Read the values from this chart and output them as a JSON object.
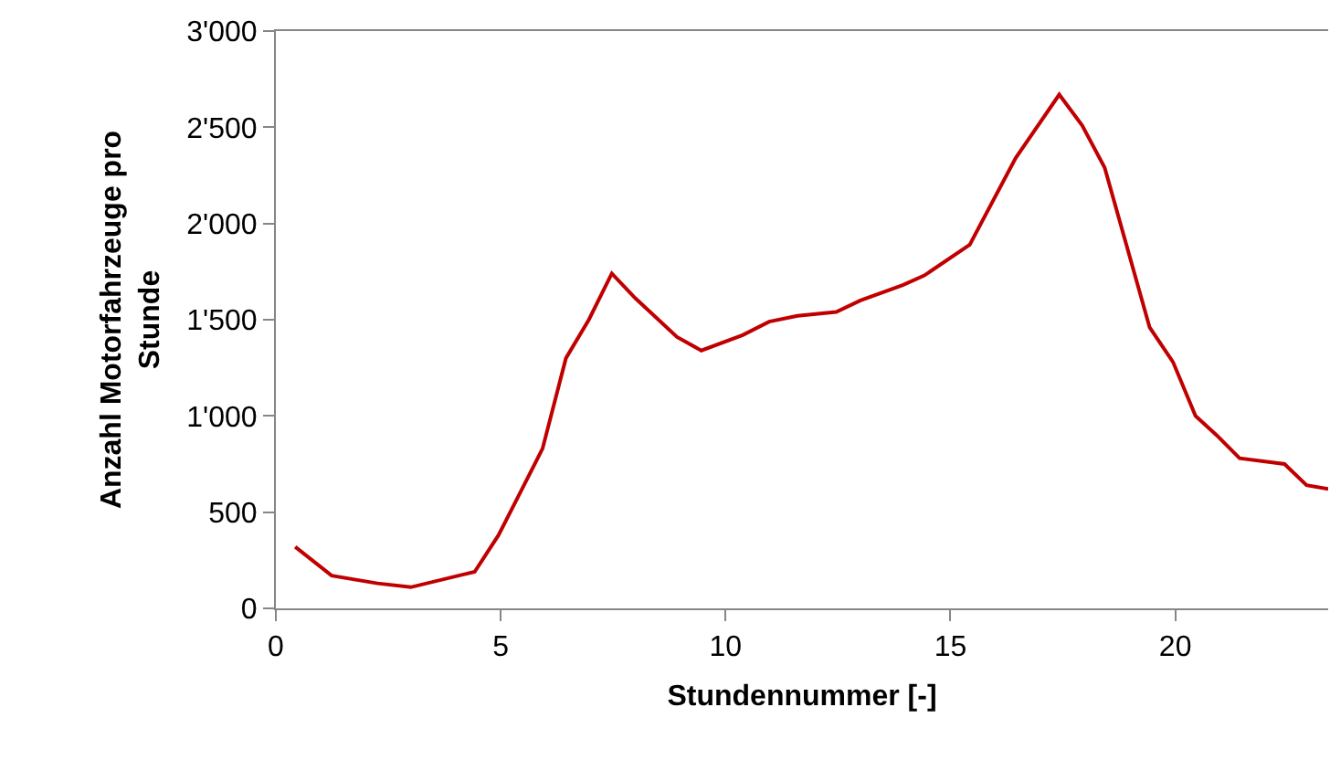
{
  "chart_data": {
    "type": "line",
    "xlabel": "Stundennummer [-]",
    "ylabel": "Anzahl Motorfahrzeuge pro Stunde",
    "x": [
      0.43,
      1.24,
      2.26,
      3.0,
      4.42,
      4.95,
      5.43,
      5.93,
      6.45,
      6.96,
      7.47,
      8.0,
      8.92,
      9.46,
      10.38,
      10.97,
      11.6,
      12.46,
      13.0,
      13.94,
      14.42,
      15.43,
      16.45,
      17.42,
      17.93,
      18.43,
      19.43,
      19.95,
      20.45,
      20.92,
      21.43,
      22.43,
      22.92,
      23.4
    ],
    "series": [
      {
        "color": "#c00000",
        "values": [
          320,
          170,
          130,
          110,
          190,
          380,
          600,
          830,
          1300,
          1500,
          1740,
          1610,
          1410,
          1340,
          1420,
          1490,
          1520,
          1540,
          1600,
          1680,
          1730,
          1890,
          2340,
          2670,
          2510,
          2290,
          1460,
          1280,
          1000,
          900,
          780,
          750,
          640,
          620
        ]
      }
    ],
    "xlim": [
      0,
      23.4
    ],
    "xticks": [
      0,
      5,
      10,
      15,
      20
    ],
    "ylim": [
      0,
      3000
    ],
    "yticks": [
      {
        "value": 0,
        "label": "0"
      },
      {
        "value": 500,
        "label": "500"
      },
      {
        "value": 1000,
        "label": "1'000"
      },
      {
        "value": 1500,
        "label": "1'500"
      },
      {
        "value": 2000,
        "label": "2'000"
      },
      {
        "value": 2500,
        "label": "2'500"
      },
      {
        "value": 3000,
        "label": "3'000"
      }
    ],
    "legend": false,
    "marker": "none",
    "line_style": "solid"
  }
}
